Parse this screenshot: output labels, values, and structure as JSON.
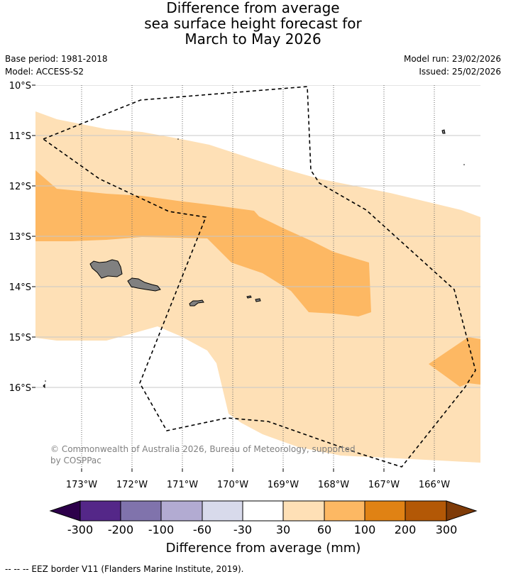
{
  "title": {
    "line1": "Difference from average",
    "line2": "sea surface height forecast for",
    "line3": "March to May 2026"
  },
  "meta": {
    "base_period": "Base period: 1981-2018",
    "model": "Model: ACCESS-S2",
    "model_run": "Model run: 23/02/2026",
    "issued": "Issued: 25/02/2026"
  },
  "map": {
    "lat_labels": [
      "10°S",
      "11°S",
      "12°S",
      "13°S",
      "14°S",
      "15°S",
      "16°S"
    ],
    "lon_labels": [
      "173°W",
      "172°W",
      "171°W",
      "170°W",
      "169°W",
      "168°W",
      "167°W",
      "166°W"
    ],
    "copyright_line1": "© Commonwealth of Australia 2026, Bureau of Meteorology, supported",
    "copyright_line2": "by COSPPac"
  },
  "colorbar": {
    "tick_labels": [
      "-300",
      "-200",
      "-100",
      "-60",
      "-30",
      "30",
      "60",
      "100",
      "200",
      "300"
    ],
    "title": "Difference from average (mm)",
    "colors": {
      "below_min": "#2d004b",
      "c1": "#542788",
      "c2": "#8073ac",
      "c3": "#b2abd2",
      "c4": "#d8daeb",
      "c5": "#ffffff",
      "c6": "#fee0b6",
      "c7": "#fdb863",
      "c8": "#e08214",
      "c9": "#b35806",
      "above_max": "#7f3b08"
    }
  },
  "footnote": "--  --  -- EEZ border V11 (Flanders Marine Institute, 2019)."
}
